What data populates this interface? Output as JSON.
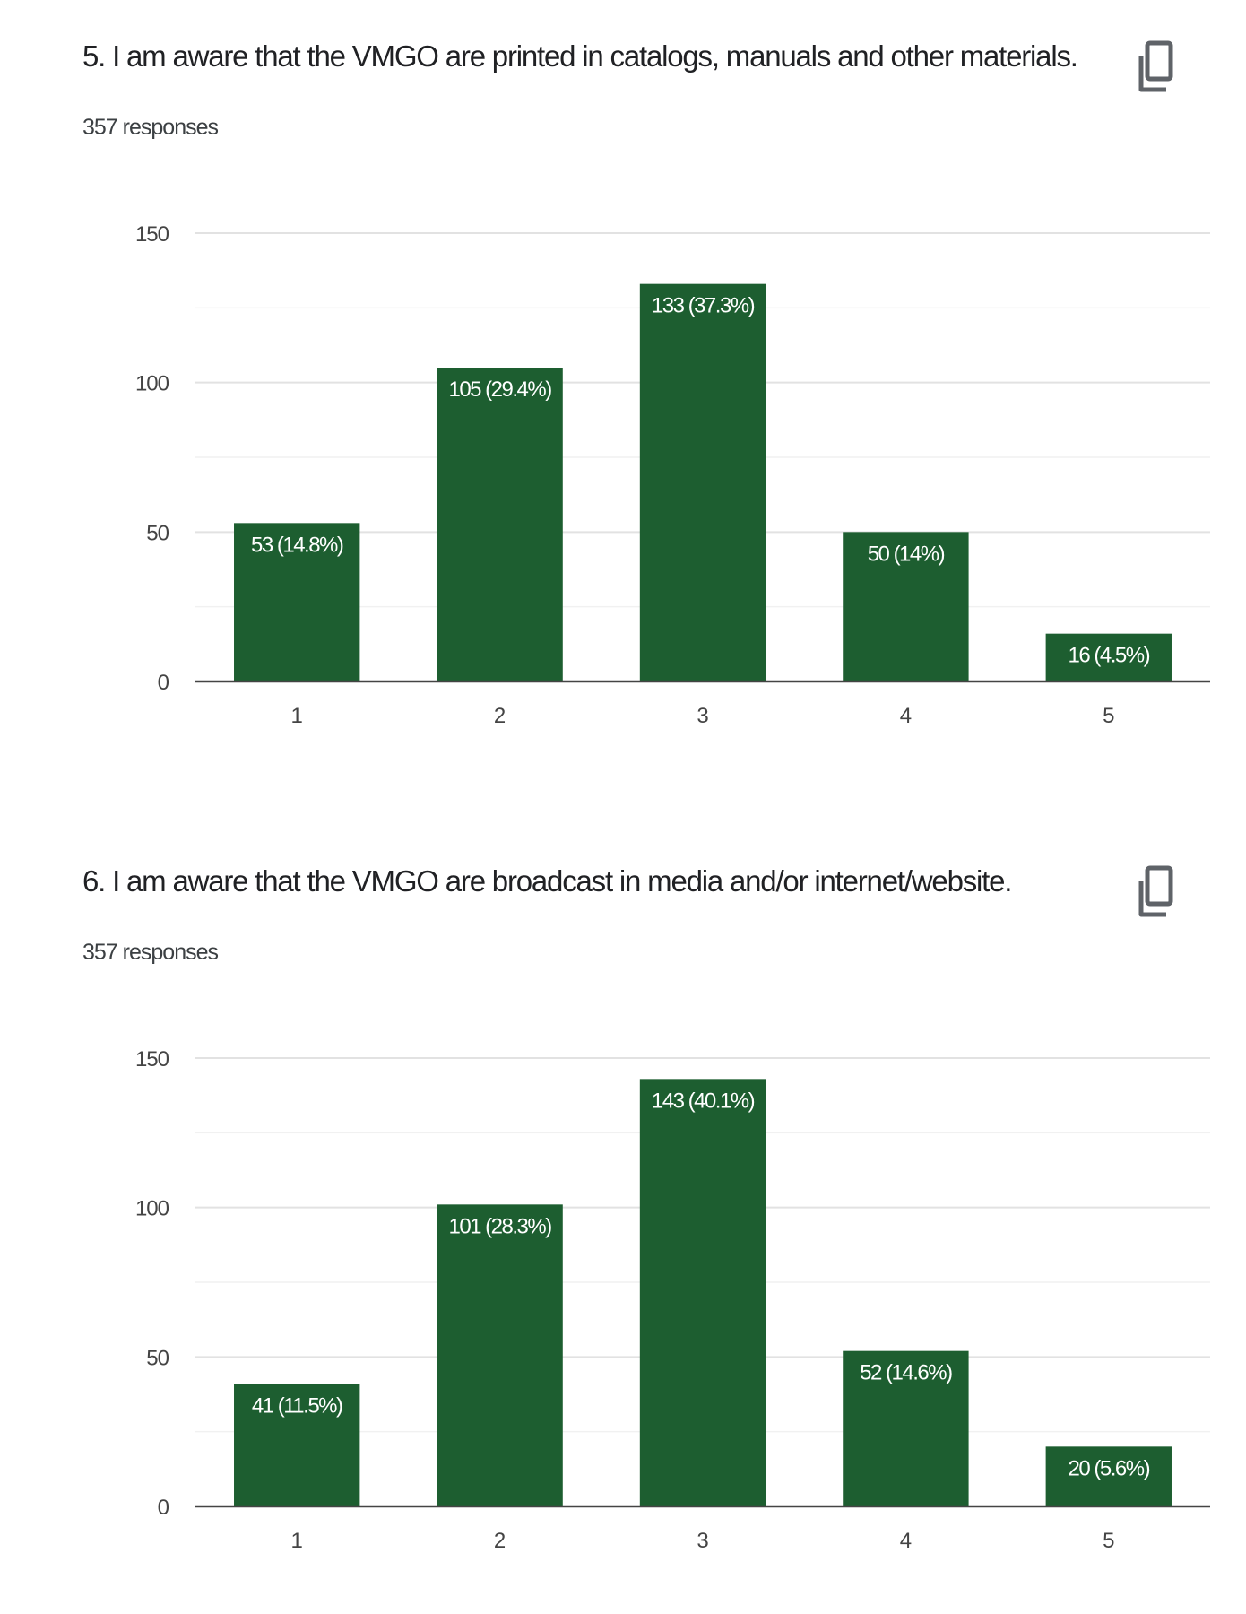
{
  "colors": {
    "bar": "#1d5e30",
    "grid": "#e6e6e6",
    "axis": "#444444",
    "label_on_bar": "#ffffff"
  },
  "questions": [
    {
      "title": "5. I am aware that the VMGO are printed in catalogs, manuals and other materials.",
      "responses": "357 responses",
      "copy_icon": "copy-icon"
    },
    {
      "title": "6. I am aware that the VMGO are broadcast in media and/or internet/website.",
      "responses": "357 responses",
      "copy_icon": "copy-icon"
    }
  ],
  "chart_data": [
    {
      "type": "bar",
      "categories": [
        "1",
        "2",
        "3",
        "4",
        "5"
      ],
      "values": [
        53,
        105,
        133,
        50,
        16
      ],
      "data_labels": [
        "53 (14.8%)",
        "105 (29.4%)",
        "133 (37.3%)",
        "50 (14%)",
        "16 (4.5%)"
      ],
      "yticks": [
        0,
        50,
        100,
        150
      ],
      "ylim": [
        0,
        150
      ],
      "grid": true
    },
    {
      "type": "bar",
      "categories": [
        "1",
        "2",
        "3",
        "4",
        "5"
      ],
      "values": [
        41,
        101,
        143,
        52,
        20
      ],
      "data_labels": [
        "41 (11.5%)",
        "101 (28.3%)",
        "143 (40.1%)",
        "52 (14.6%)",
        "20 (5.6%)"
      ],
      "yticks": [
        0,
        50,
        100,
        150
      ],
      "ylim": [
        0,
        150
      ],
      "grid": true
    }
  ]
}
